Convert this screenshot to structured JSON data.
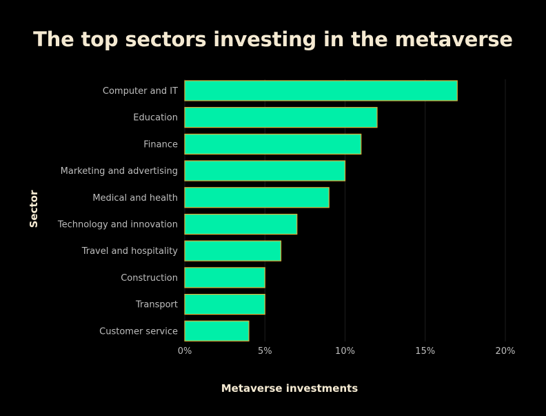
{
  "chart_data": {
    "type": "bar",
    "orientation": "horizontal",
    "title": "The top sectors investing in the metaverse",
    "xlabel": "Metaverse investments",
    "ylabel": "Sector",
    "categories": [
      "Computer and IT",
      "Education",
      "Finance",
      "Marketing and advertising",
      "Medical and health",
      "Technology and innovation",
      "Travel and hospitality",
      "Construction",
      "Transport",
      "Customer service"
    ],
    "values": [
      17,
      12,
      11,
      10,
      9,
      7,
      6,
      5,
      5,
      4
    ],
    "value_unit": "%",
    "xlim": [
      0,
      20
    ],
    "xticks": [
      0,
      5,
      10,
      15,
      20
    ],
    "xtick_labels": [
      "0%",
      "5%",
      "10%",
      "15%",
      "20%"
    ],
    "grid": "vertical",
    "legend": "none",
    "colors": {
      "background": "#000000",
      "bar_fill": "#00efa8",
      "bar_stroke": "#e0b03a",
      "title": "#f5ead2",
      "axis_label": "#f5ead2",
      "tick_label": "#bdbdbd",
      "grid": "#1e1e1e"
    }
  }
}
